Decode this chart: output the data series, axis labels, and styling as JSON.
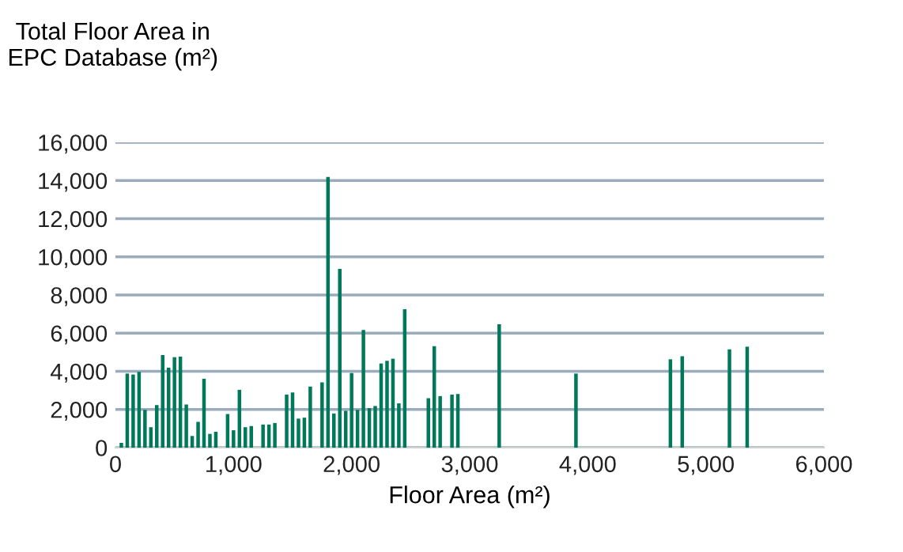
{
  "chart_data": {
    "type": "bar",
    "ylabel": "Total Floor Area in EPC Database (m²)",
    "xlabel": "Floor Area (m²)",
    "x": [
      50,
      100,
      150,
      200,
      250,
      300,
      350,
      400,
      450,
      500,
      550,
      600,
      650,
      700,
      750,
      800,
      850,
      950,
      1000,
      1050,
      1100,
      1150,
      1250,
      1300,
      1350,
      1450,
      1500,
      1550,
      1600,
      1650,
      1750,
      1800,
      1850,
      1900,
      1950,
      2000,
      2050,
      2100,
      2150,
      2200,
      2250,
      2300,
      2350,
      2400,
      2450,
      2650,
      2700,
      2750,
      2850,
      2900,
      3250,
      3900,
      4700,
      4800,
      5200,
      5350
    ],
    "values": [
      250,
      3880,
      3830,
      3970,
      1980,
      1070,
      2230,
      4850,
      4190,
      4740,
      4770,
      2260,
      610,
      1350,
      3610,
      720,
      830,
      1760,
      910,
      3030,
      1070,
      1130,
      1210,
      1210,
      1290,
      2780,
      2890,
      1520,
      1570,
      3200,
      3420,
      14190,
      1790,
      9370,
      1930,
      3910,
      1980,
      6170,
      2070,
      2180,
      4410,
      4550,
      4660,
      2320,
      7250,
      2590,
      5320,
      2700,
      2780,
      2810,
      6470,
      3880,
      4630,
      4790,
      5150,
      5290
    ],
    "color": "#00785a",
    "xlim": [
      0,
      6000
    ],
    "xticks": [
      {
        "value": 0,
        "label": "0"
      },
      {
        "value": 1000,
        "label": "1,000"
      },
      {
        "value": 2000,
        "label": "2,000"
      },
      {
        "value": 3000,
        "label": "3,000"
      },
      {
        "value": 4000,
        "label": "4,000"
      },
      {
        "value": 5000,
        "label": "5,000"
      },
      {
        "value": 6000,
        "label": "6,000"
      }
    ],
    "ylim": [
      0,
      16000
    ],
    "yticks": [
      {
        "value": 0,
        "label": "0"
      },
      {
        "value": 2000,
        "label": "2,000"
      },
      {
        "value": 4000,
        "label": "4,000"
      },
      {
        "value": 6000,
        "label": "6,000"
      },
      {
        "value": 8000,
        "label": "8,000"
      },
      {
        "value": 10000,
        "label": "10,000"
      },
      {
        "value": 12000,
        "label": "12,000"
      },
      {
        "value": 14000,
        "label": "14,000"
      },
      {
        "value": 16000,
        "label": "16,000"
      }
    ],
    "grid": "y"
  }
}
